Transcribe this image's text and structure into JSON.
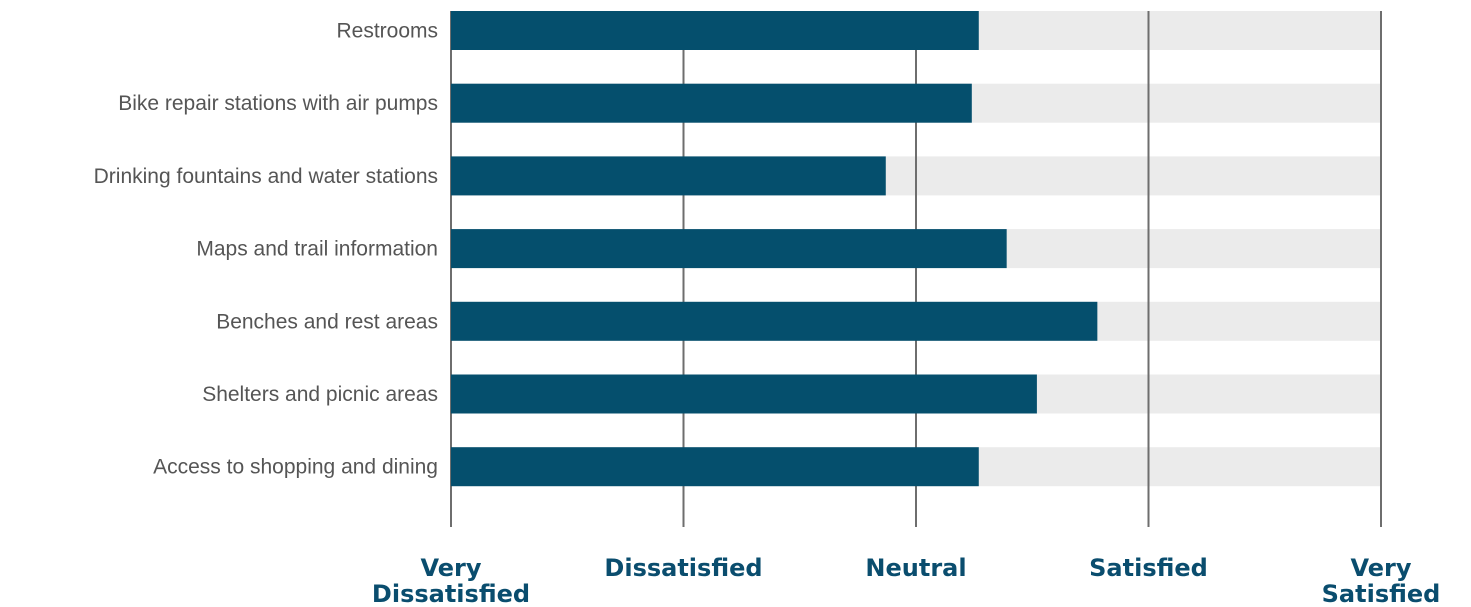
{
  "chart_data": {
    "type": "bar",
    "orientation": "horizontal",
    "categories": [
      "Restrooms",
      "Bike repair stations with air pumps",
      "Drinking fountains and water stations",
      "Maps and trail information",
      "Benches and rest areas",
      "Shelters and picnic areas",
      "Access to shopping and dining"
    ],
    "values": [
      3.27,
      3.24,
      2.87,
      3.39,
      3.78,
      3.52,
      3.27
    ],
    "xlim": [
      1,
      5
    ],
    "x_ticks": [
      {
        "value": 1,
        "lines": [
          "Very",
          "Dissatisfied"
        ]
      },
      {
        "value": 2,
        "lines": [
          "Dissatisfied"
        ]
      },
      {
        "value": 3,
        "lines": [
          "Neutral"
        ]
      },
      {
        "value": 4,
        "lines": [
          "Satisfied"
        ]
      },
      {
        "value": 5,
        "lines": [
          "Very",
          "Satisfied"
        ]
      }
    ],
    "grid": true,
    "colors": {
      "bar": "#054f6d",
      "track": "#ebebeb",
      "grid": "#6e6e6e",
      "category_text": "#555555",
      "tick_text": "#0a4d6e"
    }
  }
}
